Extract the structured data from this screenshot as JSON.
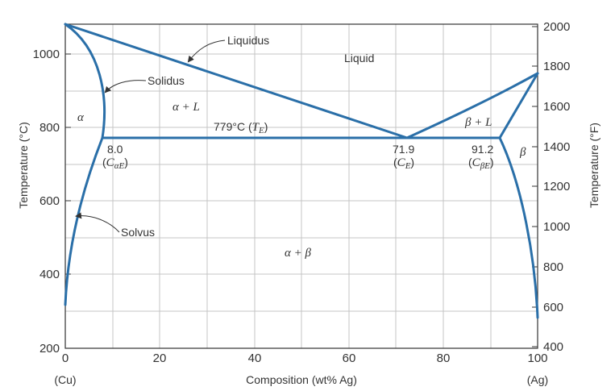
{
  "colors": {
    "curve": "#2a6fa8",
    "grid": "#c4c4c4",
    "frame": "#333333",
    "text": "#333333"
  },
  "axes": {
    "x_label": "Composition (wt% Ag)",
    "x_left_end": "(Cu)",
    "x_right_end": "(Ag)",
    "x_ticks": [
      "0",
      "20",
      "40",
      "60",
      "80",
      "100"
    ],
    "y_left_label": "Temperature (°C)",
    "y_left_ticks": [
      "200",
      "400",
      "600",
      "800",
      "1000"
    ],
    "y_right_label": "Temperature (°F)",
    "y_right_ticks": [
      "400",
      "600",
      "800",
      "1000",
      "1200",
      "1400",
      "1600",
      "1800",
      "2000"
    ]
  },
  "labels": {
    "liquidus": "Liquidus",
    "solidus": "Solidus",
    "solvus": "Solvus",
    "liquid": "Liquid",
    "alpha": "α",
    "alpha_L": "α + L",
    "beta_L": "β + L",
    "beta": "β",
    "alpha_beta": "α + β",
    "eutectic_temp": "779°C (",
    "eutectic_temp_sym": "T",
    "eutectic_temp_sub": "E",
    "eutectic_temp_close": ")",
    "c_alpha_val": "8.0",
    "c_alpha_sym": "C",
    "c_alpha_sub": "αE",
    "c_e_val": "71.9",
    "c_e_sym": "C",
    "c_e_sub": "E",
    "c_beta_val": "91.2",
    "c_beta_sym": "C",
    "c_beta_sub": "βE"
  }
}
